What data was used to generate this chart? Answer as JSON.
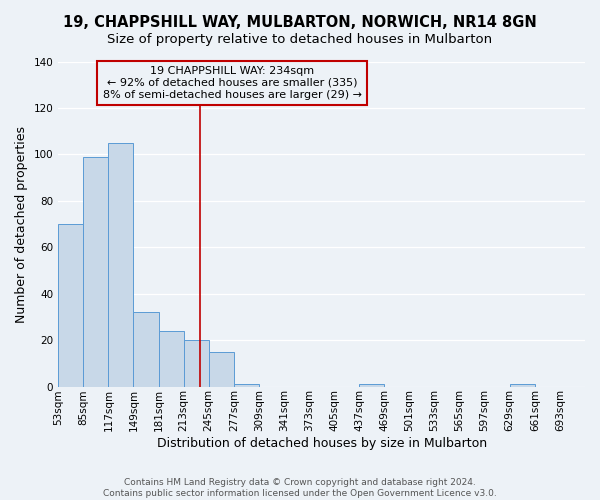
{
  "title": "19, CHAPPSHILL WAY, MULBARTON, NORWICH, NR14 8GN",
  "subtitle": "Size of property relative to detached houses in Mulbarton",
  "xlabel": "Distribution of detached houses by size in Mulbarton",
  "ylabel": "Number of detached properties",
  "footer_line1": "Contains HM Land Registry data © Crown copyright and database right 2024.",
  "footer_line2": "Contains public sector information licensed under the Open Government Licence v3.0.",
  "bin_edges": [
    53,
    85,
    117,
    149,
    181,
    213,
    245,
    277,
    309,
    341,
    373,
    405,
    437,
    469,
    501,
    533,
    565,
    597,
    629,
    661,
    693,
    725
  ],
  "bar_heights": [
    70,
    99,
    105,
    32,
    24,
    20,
    15,
    1,
    0,
    0,
    0,
    0,
    1,
    0,
    0,
    0,
    0,
    0,
    1,
    0,
    0
  ],
  "bar_color": "#c8d8e8",
  "bar_edge_color": "#5b9bd5",
  "property_size": 234,
  "property_label": "19 CHAPPSHILL WAY: 234sqm",
  "annotation_line1": "← 92% of detached houses are smaller (335)",
  "annotation_line2": "8% of semi-detached houses are larger (29) →",
  "annotation_box_color": "#c00000",
  "vline_color": "#c00000",
  "ylim": [
    0,
    140
  ],
  "yticks": [
    0,
    20,
    40,
    60,
    80,
    100,
    120,
    140
  ],
  "xtick_labels": [
    "53sqm",
    "85sqm",
    "117sqm",
    "149sqm",
    "181sqm",
    "213sqm",
    "245sqm",
    "277sqm",
    "309sqm",
    "341sqm",
    "373sqm",
    "405sqm",
    "437sqm",
    "469sqm",
    "501sqm",
    "533sqm",
    "565sqm",
    "597sqm",
    "629sqm",
    "661sqm",
    "693sqm"
  ],
  "bg_color": "#edf2f7",
  "grid_color": "#ffffff",
  "title_fontsize": 10.5,
  "subtitle_fontsize": 9.5,
  "axis_label_fontsize": 9,
  "tick_fontsize": 7.5,
  "annotation_fontsize": 8,
  "footer_fontsize": 6.5
}
